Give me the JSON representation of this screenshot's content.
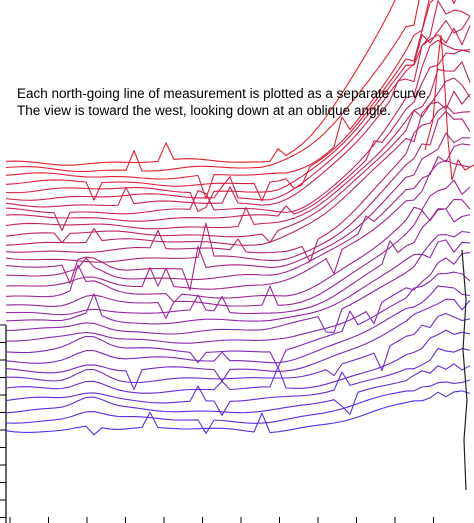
{
  "chart_data": {
    "type": "line",
    "title": "",
    "annotation": [
      "Each north-going  line of measurement is plotted as a separate curve.",
      "The view is toward the west, looking down at an oblique angle."
    ],
    "xlabel": "",
    "ylabel": "",
    "legend": "none",
    "grid": false,
    "series_count": 32,
    "color_gradient": {
      "front": "#5a2ee8",
      "back": "#e8202a"
    },
    "series_note": "Stacked oblique-view profiles; each series is a north-going line of measurement. Baselines rise (farther back) with index; spikes increase toward the east side.",
    "series_baselines": [
      430,
      420,
      410,
      400,
      390,
      380,
      370,
      360,
      350,
      340,
      331,
      322,
      313,
      304,
      295,
      286,
      277,
      268,
      259,
      250,
      242,
      234,
      226,
      218,
      211,
      204,
      197,
      190,
      183,
      176,
      169,
      162
    ],
    "series_rise_end": [
      35,
      40,
      45,
      50,
      55,
      60,
      65,
      70,
      75,
      80,
      85,
      90,
      95,
      100,
      110,
      120,
      125,
      130,
      135,
      140,
      145,
      150,
      155,
      160,
      165,
      170,
      175,
      180,
      185,
      190,
      200,
      260
    ]
  }
}
